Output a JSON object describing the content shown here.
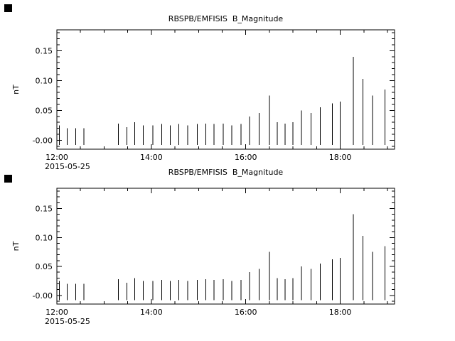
{
  "page": {
    "background": "#ffffff",
    "foreground": "#000000"
  },
  "decorations": {
    "marker_color": "#000000"
  },
  "chart_data": [
    {
      "type": "bar",
      "title": "RBSPB/EMFISIS  B_Magnitude",
      "ylabel": "nT",
      "xlabel": "",
      "date_annotation": "2015-05-25",
      "xlim": [
        12.0,
        19.15
      ],
      "ylim": [
        -0.015,
        0.185
      ],
      "x_minor_step": 0.5,
      "y_minor_step": 0.01,
      "baseline": -0.008,
      "x_ticks": [
        {
          "value": 12,
          "label": "12:00"
        },
        {
          "value": 14,
          "label": "14:00"
        },
        {
          "value": 16,
          "label": "16:00"
        },
        {
          "value": 18,
          "label": "18:00"
        }
      ],
      "y_ticks": [
        {
          "value": 0.0,
          "label": "-0.00"
        },
        {
          "value": 0.05,
          "label": "0.05"
        },
        {
          "value": 0.1,
          "label": "0.10"
        },
        {
          "value": 0.15,
          "label": "0.15"
        }
      ],
      "spikes": [
        {
          "t": 12.05,
          "v": 0.025
        },
        {
          "t": 12.22,
          "v": 0.02
        },
        {
          "t": 12.4,
          "v": 0.02
        },
        {
          "t": 12.57,
          "v": 0.02
        },
        {
          "t": 13.3,
          "v": 0.028
        },
        {
          "t": 13.48,
          "v": 0.022
        },
        {
          "t": 13.65,
          "v": 0.03
        },
        {
          "t": 13.83,
          "v": 0.025
        },
        {
          "t": 14.03,
          "v": 0.025
        },
        {
          "t": 14.22,
          "v": 0.027
        },
        {
          "t": 14.4,
          "v": 0.025
        },
        {
          "t": 14.58,
          "v": 0.027
        },
        {
          "t": 14.77,
          "v": 0.025
        },
        {
          "t": 14.97,
          "v": 0.027
        },
        {
          "t": 15.15,
          "v": 0.028
        },
        {
          "t": 15.33,
          "v": 0.027
        },
        {
          "t": 15.52,
          "v": 0.028
        },
        {
          "t": 15.7,
          "v": 0.025
        },
        {
          "t": 15.9,
          "v": 0.027
        },
        {
          "t": 16.08,
          "v": 0.04
        },
        {
          "t": 16.28,
          "v": 0.046
        },
        {
          "t": 16.5,
          "v": 0.075
        },
        {
          "t": 16.67,
          "v": 0.03
        },
        {
          "t": 16.83,
          "v": 0.028
        },
        {
          "t": 17.0,
          "v": 0.03
        },
        {
          "t": 17.18,
          "v": 0.05
        },
        {
          "t": 17.38,
          "v": 0.046
        },
        {
          "t": 17.58,
          "v": 0.055
        },
        {
          "t": 17.83,
          "v": 0.062
        },
        {
          "t": 18.0,
          "v": 0.065
        },
        {
          "t": 18.28,
          "v": 0.14
        },
        {
          "t": 18.48,
          "v": 0.103
        },
        {
          "t": 18.68,
          "v": 0.075
        },
        {
          "t": 18.95,
          "v": 0.085
        }
      ]
    },
    {
      "type": "bar",
      "title": "RBSPB/EMFISIS  B_Magnitude",
      "ylabel": "nT",
      "xlabel": "",
      "date_annotation": "2015-05-25",
      "xlim": [
        12.0,
        19.15
      ],
      "ylim": [
        -0.015,
        0.185
      ],
      "x_minor_step": 0.5,
      "y_minor_step": 0.01,
      "baseline": -0.008,
      "x_ticks": [
        {
          "value": 12,
          "label": "12:00"
        },
        {
          "value": 14,
          "label": "14:00"
        },
        {
          "value": 16,
          "label": "16:00"
        },
        {
          "value": 18,
          "label": "18:00"
        }
      ],
      "y_ticks": [
        {
          "value": 0.0,
          "label": "-0.00"
        },
        {
          "value": 0.05,
          "label": "0.05"
        },
        {
          "value": 0.1,
          "label": "0.10"
        },
        {
          "value": 0.15,
          "label": "0.15"
        }
      ],
      "spikes": [
        {
          "t": 12.05,
          "v": 0.025
        },
        {
          "t": 12.22,
          "v": 0.02
        },
        {
          "t": 12.4,
          "v": 0.02
        },
        {
          "t": 12.57,
          "v": 0.02
        },
        {
          "t": 13.3,
          "v": 0.028
        },
        {
          "t": 13.48,
          "v": 0.022
        },
        {
          "t": 13.65,
          "v": 0.03
        },
        {
          "t": 13.83,
          "v": 0.025
        },
        {
          "t": 14.03,
          "v": 0.025
        },
        {
          "t": 14.22,
          "v": 0.027
        },
        {
          "t": 14.4,
          "v": 0.025
        },
        {
          "t": 14.58,
          "v": 0.027
        },
        {
          "t": 14.77,
          "v": 0.025
        },
        {
          "t": 14.97,
          "v": 0.027
        },
        {
          "t": 15.15,
          "v": 0.028
        },
        {
          "t": 15.33,
          "v": 0.027
        },
        {
          "t": 15.52,
          "v": 0.028
        },
        {
          "t": 15.7,
          "v": 0.025
        },
        {
          "t": 15.9,
          "v": 0.027
        },
        {
          "t": 16.08,
          "v": 0.04
        },
        {
          "t": 16.28,
          "v": 0.046
        },
        {
          "t": 16.5,
          "v": 0.075
        },
        {
          "t": 16.67,
          "v": 0.03
        },
        {
          "t": 16.83,
          "v": 0.028
        },
        {
          "t": 17.0,
          "v": 0.03
        },
        {
          "t": 17.18,
          "v": 0.05
        },
        {
          "t": 17.38,
          "v": 0.046
        },
        {
          "t": 17.58,
          "v": 0.055
        },
        {
          "t": 17.83,
          "v": 0.062
        },
        {
          "t": 18.0,
          "v": 0.065
        },
        {
          "t": 18.28,
          "v": 0.14
        },
        {
          "t": 18.48,
          "v": 0.103
        },
        {
          "t": 18.68,
          "v": 0.075
        },
        {
          "t": 18.95,
          "v": 0.085
        }
      ]
    }
  ]
}
